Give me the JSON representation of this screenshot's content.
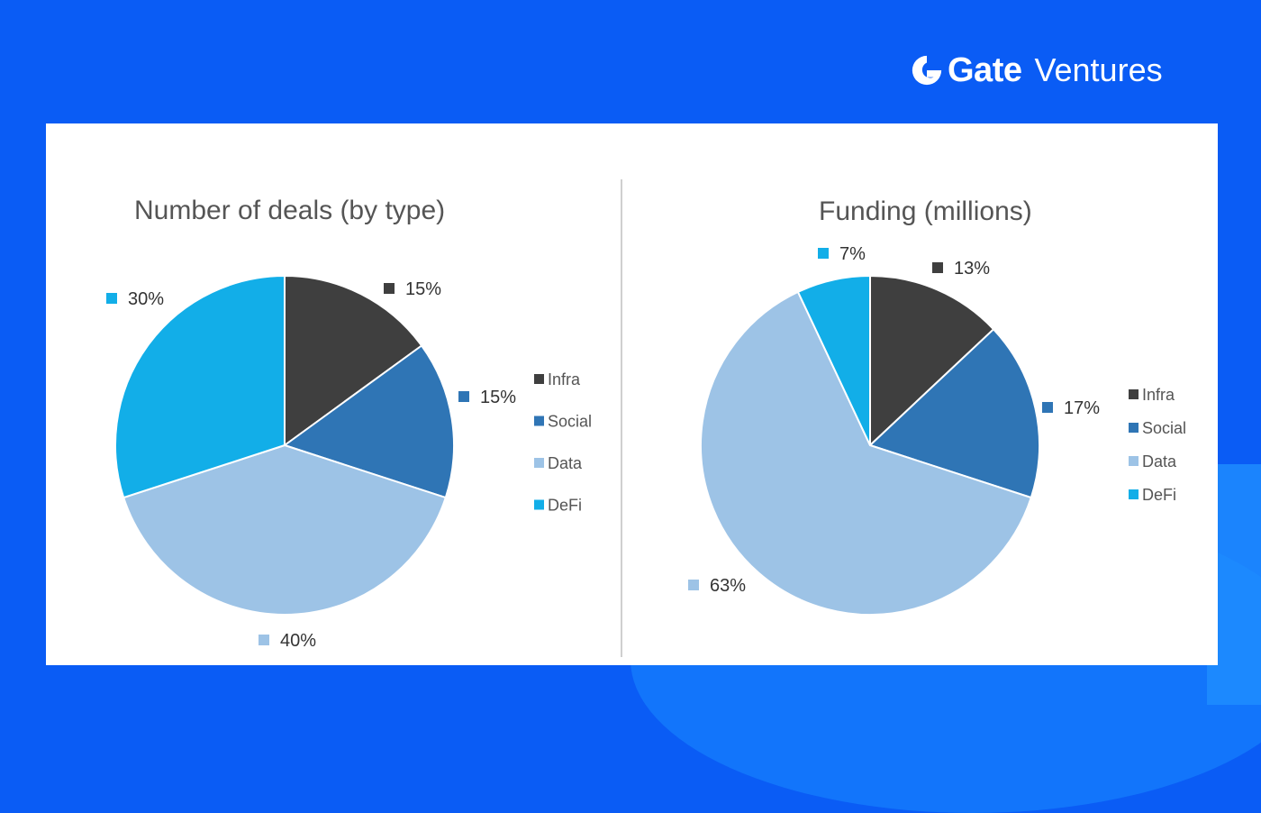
{
  "brand": {
    "name": "Gate",
    "sub": "Ventures",
    "logo_icon": "gate-logo-icon"
  },
  "colors": {
    "background": "#0a5cf5",
    "panel": "#ffffff",
    "infra": "#3f3f3f",
    "social": "#2f75b5",
    "data": "#9dc3e6",
    "defi": "#12aee8"
  },
  "chart_data": [
    {
      "type": "pie",
      "title": "Number of deals (by type)",
      "categories": [
        "Infra",
        "Social",
        "Data",
        "DeFi"
      ],
      "values": [
        15,
        15,
        40,
        30
      ],
      "data_labels": [
        "15%",
        "15%",
        "40%",
        "30%"
      ],
      "legend": {
        "position": "right",
        "entries": [
          "Infra",
          "Social",
          "Data",
          "DeFi"
        ]
      }
    },
    {
      "type": "pie",
      "title": "Funding (millions)",
      "categories": [
        "Infra",
        "Social",
        "Data",
        "DeFi"
      ],
      "values": [
        13,
        17,
        63,
        7
      ],
      "data_labels": [
        "13%",
        "17%",
        "63%",
        "7%"
      ],
      "legend": {
        "position": "right",
        "entries": [
          "Infra",
          "Social",
          "Data",
          "DeFi"
        ]
      }
    }
  ]
}
